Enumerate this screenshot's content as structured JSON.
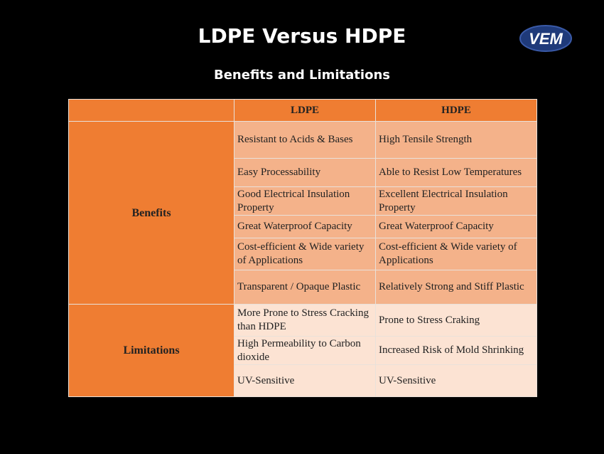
{
  "title": "LDPE Versus HDPE",
  "subtitle": "Benefits and Limitations",
  "logo": {
    "text": "VEM",
    "color": "#1f3a7a"
  },
  "colors": {
    "header": "#ef7d32",
    "benefits_cell": "#f4b28a",
    "limitations_cell": "#fce3d3",
    "background": "#000000"
  },
  "table": {
    "headers": [
      "",
      "LDPE",
      "HDPE"
    ],
    "benefits": {
      "label": "Benefits",
      "rows": [
        [
          "Resistant to Acids & Bases",
          "High Tensile Strength"
        ],
        [
          "Easy Processability",
          "Able to Resist Low Temperatures"
        ],
        [
          "Good Electrical Insulation Property",
          "Excellent Electrical Insulation Property"
        ],
        [
          "Great Waterproof Capacity",
          "Great Waterproof Capacity"
        ],
        [
          "Cost-efficient & Wide variety of Applications",
          "Cost-efficient & Wide variety of Applications"
        ],
        [
          "Transparent / Opaque Plastic",
          "Relatively Strong and Stiff Plastic"
        ]
      ]
    },
    "limitations": {
      "label": "Limitations",
      "rows": [
        [
          "More Prone to Stress Cracking than HDPE",
          "Prone to Stress Craking"
        ],
        [
          "High Permeability to Carbon dioxide",
          "Increased Risk of Mold Shrinking"
        ],
        [
          "UV-Sensitive",
          "UV-Sensitive"
        ]
      ]
    }
  }
}
